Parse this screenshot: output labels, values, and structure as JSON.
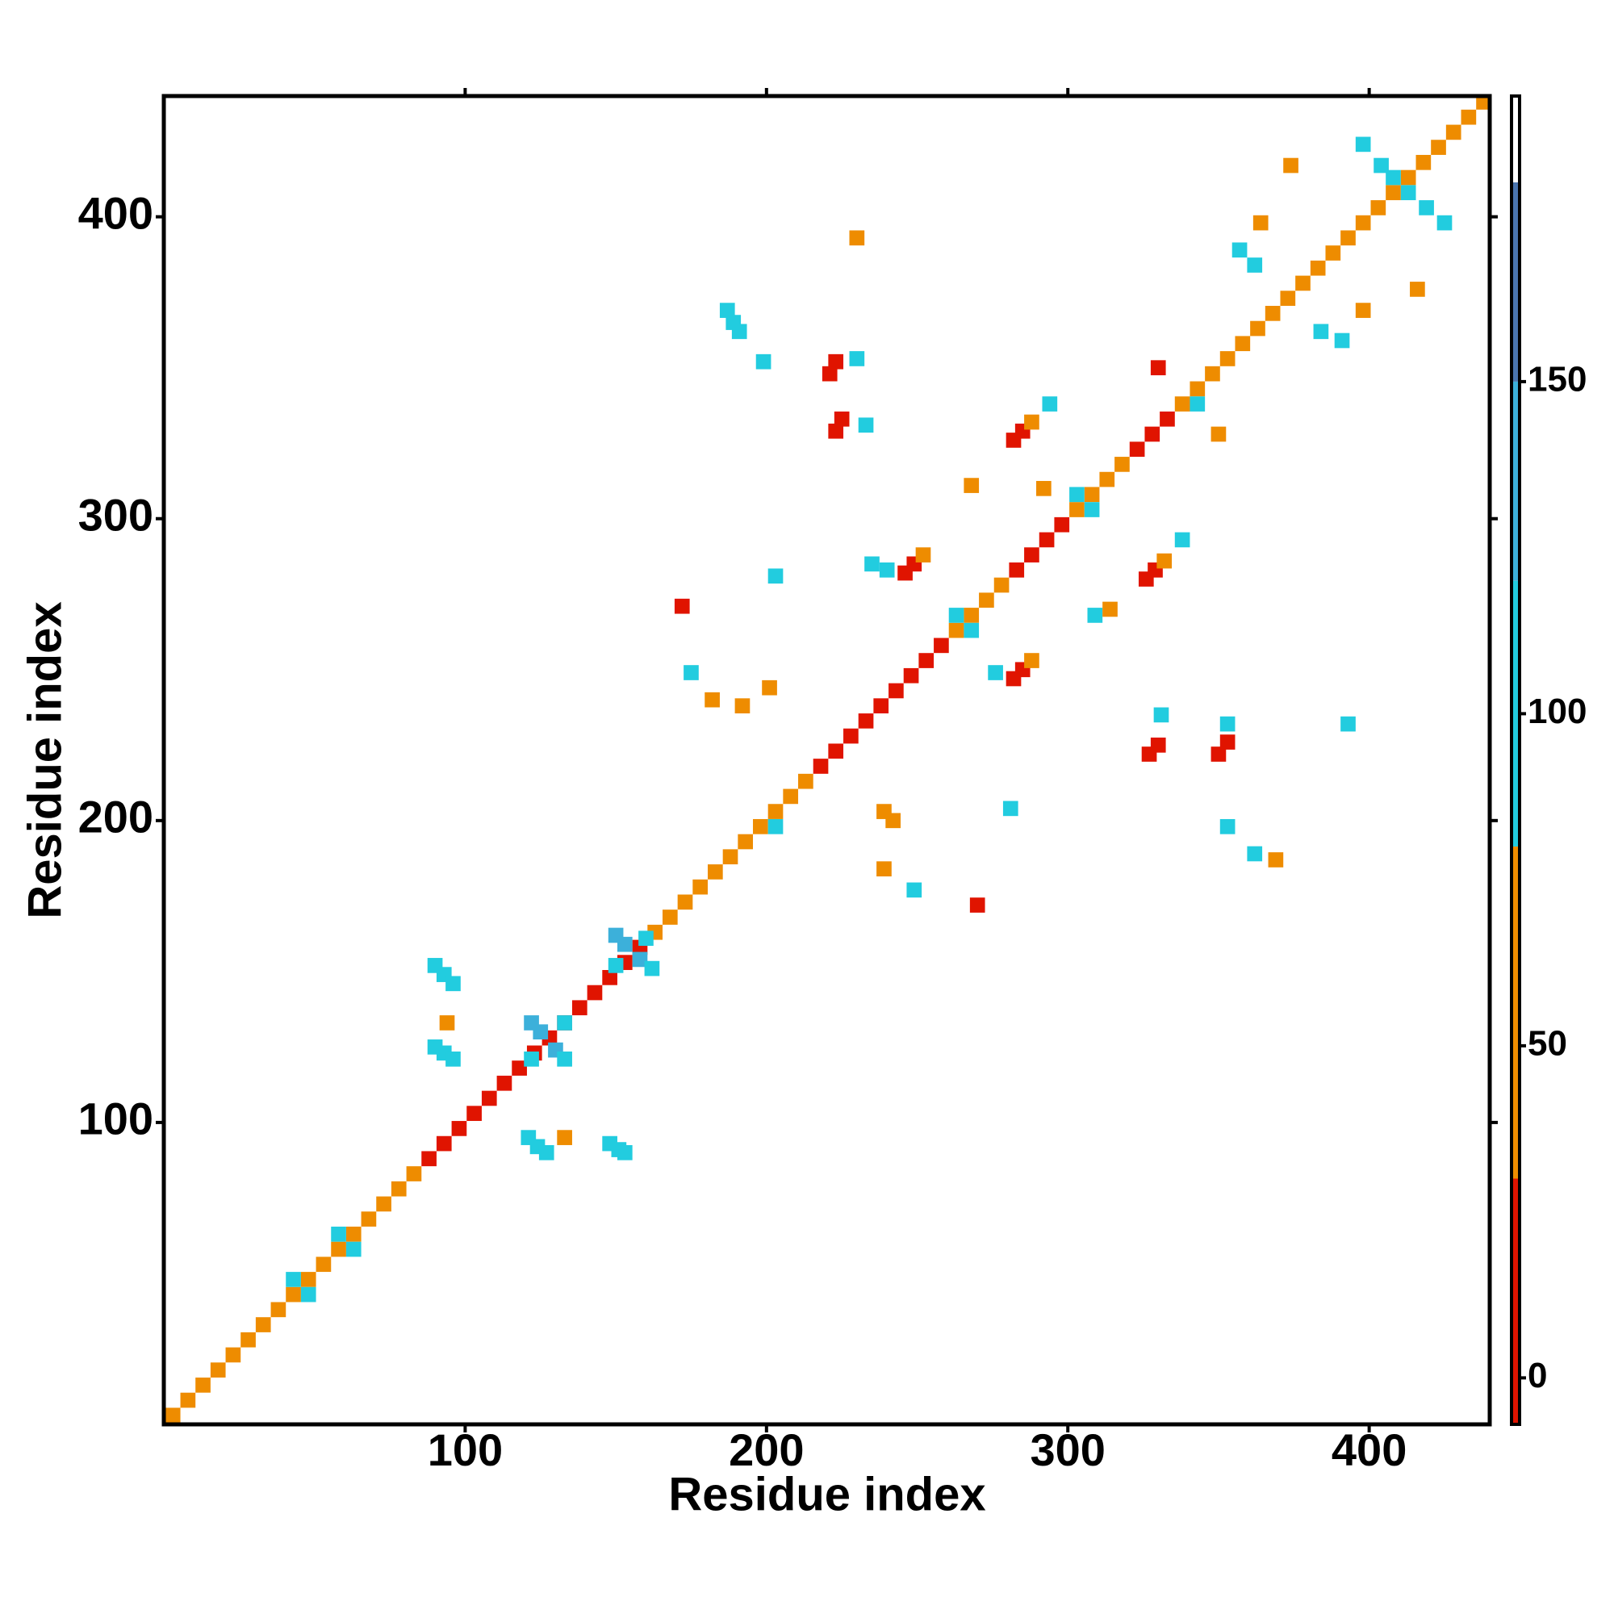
{
  "chart_data": {
    "type": "heatmap",
    "xlabel": "Residue index",
    "ylabel": "Residue index",
    "xlim": [
      0,
      440
    ],
    "ylim": [
      0,
      440
    ],
    "xticks": [
      100,
      200,
      300,
      400
    ],
    "yticks": [
      100,
      200,
      300,
      400
    ],
    "x": [
      3,
      8,
      13,
      18,
      23,
      28,
      33,
      38,
      43,
      48,
      53,
      58,
      63,
      68,
      73,
      78,
      83,
      88,
      93,
      98,
      103,
      108,
      113,
      118,
      123,
      128,
      133,
      138,
      143,
      148,
      153,
      158,
      163,
      168,
      173,
      178,
      183,
      188,
      193,
      198,
      203,
      208,
      213,
      218,
      223,
      228,
      233,
      238,
      243,
      248,
      253,
      258,
      263,
      268,
      273,
      278,
      283,
      288,
      293,
      298,
      303,
      308,
      313,
      318,
      323,
      328,
      333,
      338,
      343,
      348,
      353,
      358,
      363,
      368,
      373,
      378,
      383,
      388,
      393,
      398,
      403,
      408,
      413,
      418,
      423,
      428,
      433,
      438,
      90,
      93,
      96,
      90,
      93,
      96,
      94,
      122,
      125,
      130,
      133,
      122,
      133,
      150,
      153,
      158,
      162,
      150,
      160,
      121,
      124,
      127,
      133,
      148,
      151,
      153,
      175,
      182,
      192,
      201,
      187,
      189,
      191,
      199,
      221,
      223,
      230,
      223,
      225,
      233,
      230,
      246,
      249,
      252,
      240,
      235,
      282,
      285,
      288,
      276,
      282,
      285,
      288,
      294,
      326,
      329,
      332,
      338,
      327,
      330,
      331,
      350,
      353,
      353,
      239,
      242,
      239,
      249,
      362,
      353,
      369,
      268,
      309,
      314,
      374,
      364,
      357,
      362,
      398,
      404,
      419,
      425,
      384,
      391,
      398,
      416,
      393,
      292,
      350,
      330,
      270,
      172,
      281,
      203,
      48,
      43,
      63,
      58,
      308,
      303,
      413,
      408,
      203,
      268,
      263,
      343
    ],
    "y": [
      3,
      8,
      13,
      18,
      23,
      28,
      33,
      38,
      43,
      48,
      53,
      58,
      63,
      68,
      73,
      78,
      83,
      88,
      93,
      98,
      103,
      108,
      113,
      118,
      123,
      128,
      133,
      138,
      143,
      148,
      153,
      158,
      163,
      168,
      173,
      178,
      183,
      188,
      193,
      198,
      203,
      208,
      213,
      218,
      223,
      228,
      233,
      238,
      243,
      248,
      253,
      258,
      263,
      268,
      273,
      278,
      283,
      288,
      293,
      298,
      303,
      308,
      313,
      318,
      323,
      328,
      333,
      338,
      343,
      348,
      353,
      358,
      363,
      368,
      373,
      378,
      383,
      388,
      393,
      398,
      403,
      408,
      413,
      418,
      423,
      428,
      433,
      438,
      152,
      149,
      146,
      125,
      123,
      121,
      133,
      133,
      130,
      124,
      121,
      121,
      133,
      162,
      159,
      154,
      151,
      152,
      161,
      95,
      92,
      90,
      95,
      93,
      91,
      90,
      249,
      240,
      238,
      244,
      369,
      365,
      362,
      352,
      348,
      352,
      353,
      329,
      333,
      331,
      393,
      282,
      285,
      288,
      283,
      285,
      247,
      250,
      253,
      249,
      326,
      329,
      332,
      338,
      280,
      283,
      286,
      293,
      222,
      225,
      235,
      222,
      226,
      232,
      203,
      200,
      184,
      177,
      189,
      198,
      187,
      311,
      268,
      270,
      417,
      398,
      389,
      384,
      424,
      417,
      403,
      398,
      362,
      359,
      369,
      376,
      232,
      310,
      328,
      350,
      172,
      271,
      204,
      281,
      43,
      48,
      58,
      63,
      303,
      308,
      408,
      413,
      198,
      263,
      268,
      338
    ],
    "values": [
      65,
      65,
      65,
      65,
      65,
      65,
      65,
      65,
      65,
      65,
      65,
      65,
      65,
      65,
      65,
      65,
      65,
      10,
      10,
      10,
      10,
      10,
      10,
      10,
      10,
      10,
      10,
      10,
      10,
      10,
      10,
      10,
      65,
      65,
      65,
      65,
      65,
      65,
      65,
      65,
      65,
      65,
      65,
      10,
      10,
      10,
      10,
      10,
      10,
      10,
      10,
      10,
      65,
      65,
      65,
      65,
      10,
      10,
      10,
      10,
      65,
      65,
      65,
      65,
      10,
      10,
      10,
      65,
      65,
      65,
      65,
      65,
      65,
      65,
      65,
      65,
      65,
      65,
      65,
      65,
      65,
      65,
      65,
      65,
      65,
      65,
      65,
      65,
      110,
      110,
      110,
      110,
      110,
      110,
      60,
      125,
      125,
      125,
      110,
      110,
      110,
      125,
      125,
      125,
      110,
      110,
      110,
      110,
      110,
      110,
      60,
      110,
      110,
      110,
      110,
      60,
      60,
      60,
      110,
      110,
      110,
      110,
      10,
      10,
      110,
      10,
      10,
      110,
      60,
      10,
      10,
      60,
      110,
      110,
      10,
      10,
      60,
      110,
      10,
      10,
      60,
      110,
      10,
      10,
      60,
      110,
      10,
      10,
      110,
      10,
      10,
      110,
      60,
      60,
      60,
      110,
      110,
      110,
      60,
      60,
      110,
      60,
      60,
      60,
      110,
      110,
      110,
      110,
      110,
      110,
      110,
      110,
      60,
      60,
      110,
      60,
      60,
      10,
      10,
      10,
      110,
      110,
      110,
      110,
      110,
      110,
      110,
      110,
      110,
      110,
      110,
      110,
      110,
      110
    ],
    "colorbar": {
      "lim": [
        -7,
        193
      ],
      "ticks": [
        0,
        50,
        100,
        150
      ],
      "bins": [
        -7,
        30,
        80,
        120,
        150,
        180,
        193
      ],
      "colors": [
        "#e01400",
        "#ee8c00",
        "#22ccdf",
        "#3cb0da",
        "#4a74ae",
        "#ffffff"
      ]
    }
  }
}
